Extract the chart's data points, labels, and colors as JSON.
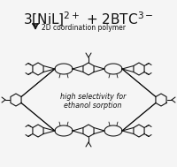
{
  "title": "3[NiL]$^{2+}$ + 2BTC$^{3-}$",
  "arrow_text": "2D coordination polymer",
  "body_text_line1": "high selectivity for",
  "body_text_line2": "ethanol sorption",
  "bg_color": "#f5f5f5",
  "text_color": "#111111",
  "line_color": "#111111",
  "fig_width": 2.0,
  "fig_height": 1.89,
  "dpi": 100
}
